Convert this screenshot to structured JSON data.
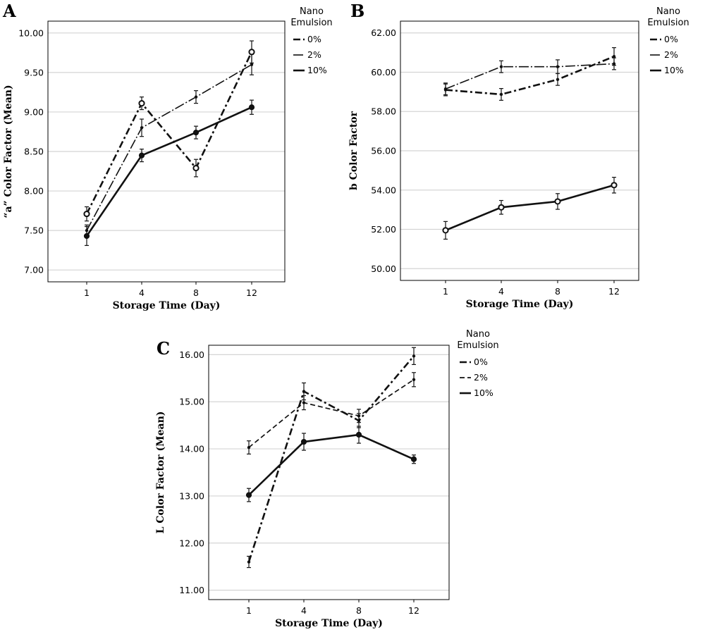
{
  "chart_data": [
    {
      "type": "line",
      "panel_label": "A",
      "xlabel": "Storage Time (Day)",
      "ylabel": "“a” Color Factor (Mean)",
      "categories": [
        "1",
        "4",
        "8",
        "12"
      ],
      "y_ticks": [
        "7.00",
        "7.50",
        "8.00",
        "8.50",
        "9.00",
        "9.50",
        "10.00"
      ],
      "ylim": [
        6.85,
        10.15
      ],
      "grid": true,
      "legend": {
        "title_line1": "Nano",
        "title_line2": "Emulsion",
        "placement": "right"
      },
      "series": [
        {
          "name": "0%",
          "style": "dash-dot",
          "marker": "open-circle",
          "values": [
            7.71,
            9.11,
            8.29,
            9.76
          ],
          "errors": [
            0.09,
            0.08,
            0.11,
            0.14
          ]
        },
        {
          "name": "2%",
          "style": "long-dash-dot",
          "marker": "small-dot",
          "values": [
            7.5,
            8.8,
            9.19,
            9.6
          ],
          "errors": [
            0.07,
            0.11,
            0.08,
            0.13
          ]
        },
        {
          "name": "10%",
          "style": "solid",
          "marker": "filled-circle",
          "values": [
            7.43,
            8.45,
            8.74,
            9.06
          ],
          "errors": [
            0.12,
            0.08,
            0.08,
            0.09
          ]
        }
      ]
    },
    {
      "type": "line",
      "panel_label": "B",
      "xlabel": "Storage Time (Day)",
      "ylabel": "b Color Factor",
      "categories": [
        "1",
        "4",
        "8",
        "12"
      ],
      "y_ticks": [
        "50.00",
        "52.00",
        "54.00",
        "56.00",
        "58.00",
        "60.00",
        "62.00"
      ],
      "ylim": [
        49.4,
        62.6
      ],
      "grid": true,
      "legend": {
        "title_line1": "Nano",
        "title_line2": "Emulsion",
        "placement": "right"
      },
      "series": [
        {
          "name": "0%",
          "style": "dash-dot",
          "marker": "small-dot",
          "values": [
            59.1,
            58.87,
            59.63,
            60.8
          ],
          "errors": [
            0.3,
            0.3,
            0.3,
            0.45
          ]
        },
        {
          "name": "2%",
          "style": "long-dash-dot",
          "marker": "small-dot",
          "values": [
            59.15,
            60.28,
            60.28,
            60.43
          ],
          "errors": [
            0.3,
            0.3,
            0.35,
            0.3
          ]
        },
        {
          "name": "10%",
          "style": "solid",
          "marker": "open-circle",
          "values": [
            51.95,
            53.12,
            53.42,
            54.25
          ],
          "errors": [
            0.45,
            0.35,
            0.4,
            0.4
          ]
        }
      ]
    },
    {
      "type": "line",
      "panel_label": "C",
      "xlabel": "Storage Time (Day)",
      "ylabel": "L Color Factor (Mean)",
      "categories": [
        "1",
        "4",
        "8",
        "12"
      ],
      "y_ticks": [
        "11.00",
        "12.00",
        "13.00",
        "14.00",
        "15.00",
        "16.00"
      ],
      "ylim": [
        10.8,
        16.2
      ],
      "grid": true,
      "legend": {
        "title_line1": "Nano",
        "title_line2": "Emulsion",
        "placement": "right"
      },
      "series": [
        {
          "name": "0%",
          "style": "dash-dot",
          "marker": "small-dot",
          "values": [
            11.6,
            15.22,
            14.6,
            15.97
          ],
          "errors": [
            0.12,
            0.18,
            0.15,
            0.18
          ]
        },
        {
          "name": "2%",
          "style": "dashed",
          "marker": "small-dot",
          "values": [
            14.03,
            14.98,
            14.7,
            15.47
          ],
          "errors": [
            0.14,
            0.15,
            0.14,
            0.15
          ]
        },
        {
          "name": "10%",
          "style": "solid",
          "marker": "filled-circle",
          "values": [
            13.02,
            14.15,
            14.3,
            13.78
          ],
          "errors": [
            0.14,
            0.18,
            0.18,
            0.09
          ]
        }
      ]
    }
  ]
}
